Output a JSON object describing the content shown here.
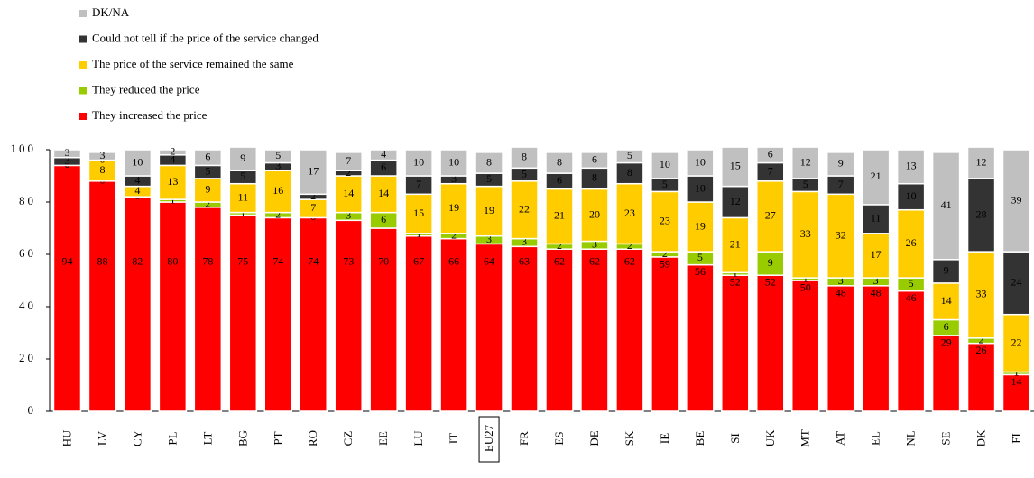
{
  "chart_data": {
    "type": "stacked_bar",
    "categories": [
      "HU",
      "LV",
      "CY",
      "PL",
      "LT",
      "BG",
      "PT",
      "RO",
      "CZ",
      "EE",
      "LU",
      "IT",
      "EU27",
      "FR",
      "ES",
      "DE",
      "SK",
      "IE",
      "BE",
      "SI",
      "UK",
      "MT",
      "AT",
      "EL",
      "NL",
      "SE",
      "DK",
      "FI"
    ],
    "highlight": "EU27",
    "series": [
      {
        "name": "They increased the price",
        "color": "#ff0000",
        "values": [
          94,
          88,
          82,
          80,
          78,
          75,
          74,
          74,
          73,
          70,
          67,
          66,
          64,
          63,
          62,
          62,
          62,
          59,
          56,
          52,
          52,
          50,
          48,
          48,
          46,
          29,
          26,
          14
        ]
      },
      {
        "name": "They reduced the price",
        "color": "#99cc00",
        "values": [
          0,
          0,
          0,
          1,
          2,
          1,
          2,
          0,
          3,
          6,
          1,
          2,
          3,
          3,
          2,
          3,
          2,
          2,
          5,
          1,
          9,
          1,
          3,
          3,
          5,
          6,
          2,
          1
        ]
      },
      {
        "name": "The price of the service remained the same",
        "color": "#ffcc00",
        "values": [
          0,
          8,
          4,
          13,
          9,
          11,
          16,
          7,
          14,
          14,
          15,
          19,
          19,
          22,
          21,
          20,
          23,
          23,
          19,
          21,
          27,
          33,
          32,
          17,
          26,
          14,
          33,
          22
        ]
      },
      {
        "name": "Could not tell if the price of the service changed",
        "color": "#333333",
        "values": [
          3,
          0,
          4,
          4,
          5,
          5,
          3,
          2,
          2,
          6,
          7,
          3,
          5,
          5,
          6,
          8,
          8,
          5,
          10,
          12,
          7,
          5,
          7,
          11,
          10,
          9,
          28,
          24
        ]
      },
      {
        "name": "DK/NA",
        "color": "#c0c0c0",
        "values": [
          3,
          3,
          10,
          2,
          6,
          9,
          5,
          17,
          7,
          4,
          10,
          10,
          8,
          8,
          8,
          6,
          5,
          10,
          10,
          15,
          6,
          12,
          9,
          21,
          13,
          41,
          12,
          39
        ]
      }
    ],
    "ylim": [
      0,
      100
    ],
    "yticks": [
      0,
      20,
      40,
      60,
      80,
      100
    ]
  }
}
